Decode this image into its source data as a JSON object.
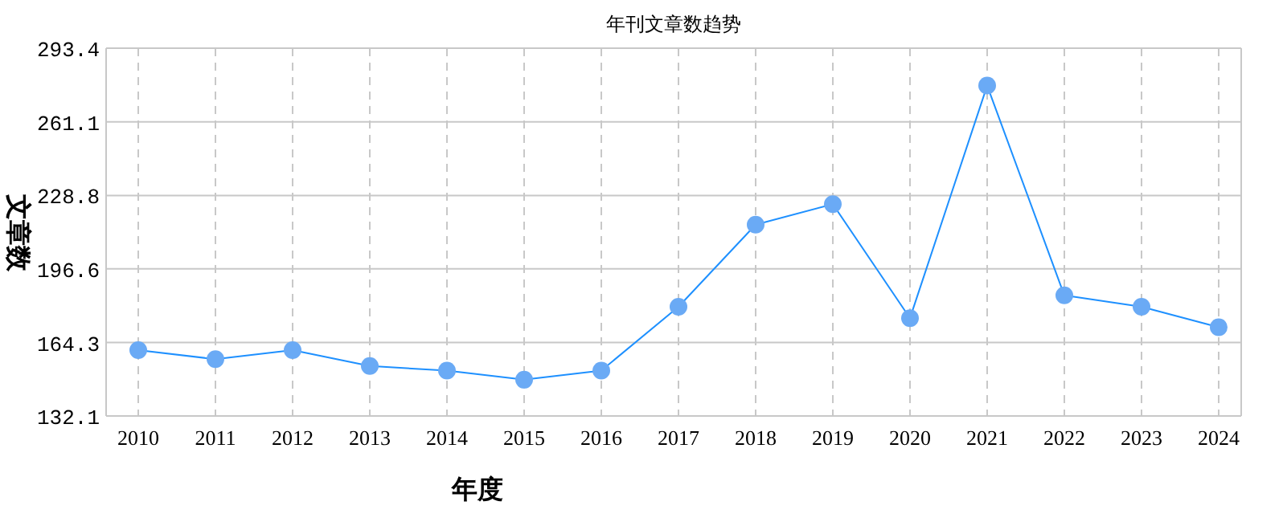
{
  "chart_data": {
    "type": "line",
    "title": "年刊文章数趋势",
    "xlabel": "年度",
    "ylabel": "文章数",
    "categories": [
      "2010",
      "2011",
      "2012",
      "2013",
      "2014",
      "2015",
      "2016",
      "2017",
      "2018",
      "2019",
      "2020",
      "2021",
      "2022",
      "2023",
      "2024"
    ],
    "series": [
      {
        "color": "#1e90ff",
        "values": [
          161,
          157,
          161,
          154,
          152,
          148,
          152,
          180,
          216,
          225,
          175,
          277,
          185,
          180,
          171
        ]
      }
    ],
    "ylim": [
      132.1,
      293.4
    ],
    "yticks": [
      132.1,
      164.3,
      196.6,
      228.8,
      261.1,
      293.4
    ],
    "grid": true,
    "marker": "circle",
    "line_style": "solid"
  }
}
